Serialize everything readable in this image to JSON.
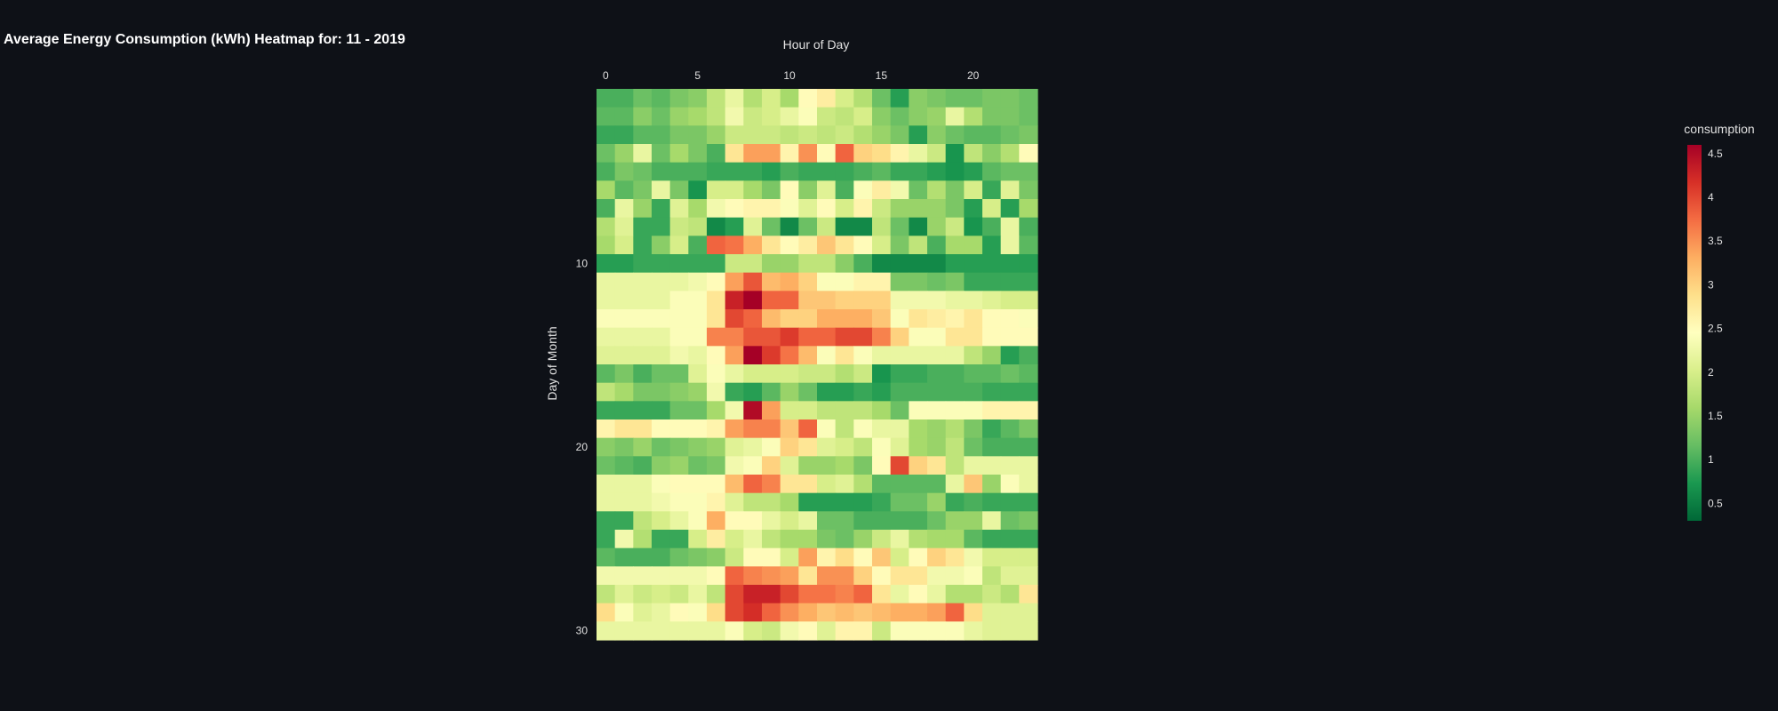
{
  "colors": {
    "background": "#0e1117",
    "text": "#e6e6e6"
  },
  "chart_data": {
    "type": "heatmap",
    "title": "Average Energy Consumption (kWh) Heatmap for: 11 - 2019",
    "xlabel": "Hour of Day",
    "ylabel": "Day of Month",
    "x": [
      0,
      1,
      2,
      3,
      4,
      5,
      6,
      7,
      8,
      9,
      10,
      11,
      12,
      13,
      14,
      15,
      16,
      17,
      18,
      19,
      20,
      21,
      22,
      23
    ],
    "y": [
      1,
      2,
      3,
      4,
      5,
      6,
      7,
      8,
      9,
      10,
      11,
      12,
      13,
      14,
      15,
      16,
      17,
      18,
      19,
      20,
      21,
      22,
      23,
      24,
      25,
      26,
      27,
      28,
      29,
      30
    ],
    "x_ticks": [
      0,
      5,
      10,
      15,
      20
    ],
    "y_ticks": [
      10,
      20,
      30
    ],
    "x_axis_position": "top",
    "y_axis_reversed": true,
    "colorscale": "RdYlGn (reversed)",
    "zmin": 0.3,
    "zmax": 4.6,
    "colorbar": {
      "title": "consumption",
      "tickvals": [
        0.5,
        1,
        1.5,
        2,
        2.5,
        3,
        3.5,
        4,
        4.5
      ],
      "ticktext": [
        "0.5",
        "1",
        "1.5",
        "2",
        "2.5",
        "3",
        "3.5",
        "4",
        "4.5"
      ]
    },
    "z": [
      [
        1.0,
        1.0,
        1.2,
        1.1,
        1.3,
        1.4,
        1.8,
        2.2,
        1.7,
        2.0,
        1.6,
        2.5,
        2.7,
        2.0,
        1.7,
        1.2,
        0.8,
        1.4,
        1.3,
        1.2,
        1.2,
        1.3,
        1.3,
        1.2
      ],
      [
        1.1,
        1.1,
        1.4,
        1.2,
        1.5,
        1.6,
        1.8,
        2.3,
        1.9,
        2.0,
        2.2,
        2.4,
        1.9,
        1.8,
        2.0,
        1.4,
        1.2,
        1.4,
        1.5,
        2.2,
        1.7,
        1.3,
        1.3,
        1.2
      ],
      [
        0.9,
        0.9,
        1.1,
        1.1,
        1.3,
        1.3,
        1.5,
        1.9,
        1.9,
        1.9,
        1.8,
        1.9,
        1.8,
        1.9,
        1.7,
        1.5,
        1.3,
        0.8,
        1.4,
        1.2,
        1.1,
        1.1,
        1.2,
        1.3
      ],
      [
        1.2,
        1.5,
        2.2,
        1.2,
        1.6,
        1.3,
        1.0,
        2.8,
        3.4,
        3.4,
        2.6,
        3.5,
        2.5,
        3.8,
        3.0,
        2.9,
        2.6,
        2.2,
        1.9,
        0.7,
        1.8,
        1.4,
        1.7,
        2.5
      ],
      [
        1.0,
        1.3,
        1.2,
        1.0,
        1.0,
        1.0,
        0.9,
        0.9,
        0.9,
        0.8,
        1.0,
        0.9,
        0.9,
        0.9,
        1.0,
        1.1,
        0.9,
        0.9,
        0.8,
        0.7,
        0.8,
        1.1,
        1.2,
        1.2
      ],
      [
        1.6,
        1.1,
        1.3,
        2.2,
        1.3,
        0.7,
        2.0,
        2.0,
        1.6,
        1.3,
        2.5,
        1.4,
        2.1,
        1.0,
        2.4,
        2.7,
        2.3,
        1.2,
        1.7,
        1.3,
        2.0,
        0.9,
        2.1,
        1.3
      ],
      [
        1.0,
        2.2,
        1.5,
        0.9,
        2.1,
        1.6,
        2.3,
        2.5,
        2.6,
        2.6,
        2.4,
        2.1,
        2.5,
        2.0,
        2.6,
        1.9,
        1.5,
        1.5,
        1.5,
        1.3,
        0.8,
        2.0,
        0.8,
        1.6
      ],
      [
        1.7,
        2.1,
        0.9,
        0.9,
        1.9,
        1.8,
        0.6,
        0.8,
        2.1,
        1.2,
        0.6,
        1.2,
        1.9,
        0.6,
        0.6,
        1.8,
        1.2,
        0.6,
        1.5,
        1.9,
        0.7,
        1.0,
        2.2,
        1.0
      ],
      [
        1.6,
        2.0,
        0.9,
        1.4,
        2.0,
        1.0,
        3.8,
        3.7,
        3.3,
        2.8,
        2.5,
        2.7,
        3.1,
        2.8,
        2.5,
        2.0,
        1.3,
        1.8,
        1.0,
        1.6,
        1.6,
        0.8,
        2.2,
        1.1
      ],
      [
        0.8,
        0.8,
        0.9,
        0.9,
        0.9,
        0.9,
        0.9,
        1.9,
        1.9,
        1.5,
        1.5,
        1.8,
        1.8,
        1.4,
        1.0,
        0.6,
        0.6,
        0.6,
        0.6,
        0.8,
        0.8,
        0.8,
        0.8,
        0.8
      ],
      [
        2.2,
        2.2,
        2.2,
        2.2,
        2.2,
        2.3,
        2.5,
        3.4,
        3.9,
        3.2,
        3.3,
        3.0,
        2.4,
        2.4,
        2.6,
        2.6,
        1.3,
        1.3,
        1.2,
        1.3,
        0.9,
        0.9,
        0.9,
        0.9
      ],
      [
        2.2,
        2.2,
        2.2,
        2.2,
        2.4,
        2.4,
        2.8,
        4.3,
        4.6,
        3.8,
        3.8,
        3.1,
        3.1,
        3.0,
        3.0,
        3.0,
        2.3,
        2.3,
        2.3,
        2.2,
        2.2,
        2.1,
        2.0,
        2.0
      ],
      [
        2.4,
        2.4,
        2.4,
        2.4,
        2.4,
        2.4,
        2.8,
        4.0,
        3.8,
        3.2,
        3.0,
        3.0,
        3.3,
        3.3,
        3.3,
        3.1,
        2.4,
        2.8,
        2.7,
        2.6,
        2.8,
        2.5,
        2.5,
        2.4
      ],
      [
        2.2,
        2.2,
        2.2,
        2.2,
        2.4,
        2.4,
        3.6,
        3.6,
        3.9,
        3.9,
        4.1,
        3.8,
        3.8,
        4.0,
        4.0,
        3.6,
        3.0,
        2.4,
        2.4,
        2.8,
        2.8,
        2.5,
        2.5,
        2.5
      ],
      [
        2.1,
        2.1,
        2.1,
        2.1,
        2.3,
        2.2,
        2.5,
        3.4,
        4.6,
        4.1,
        3.7,
        3.2,
        2.4,
        2.8,
        2.4,
        2.2,
        2.2,
        2.2,
        2.2,
        2.2,
        1.8,
        1.5,
        0.8,
        1.0
      ],
      [
        1.1,
        1.3,
        1.0,
        1.2,
        1.2,
        2.1,
        2.4,
        2.2,
        2.0,
        2.0,
        2.0,
        1.9,
        1.9,
        1.7,
        1.9,
        0.7,
        0.9,
        0.9,
        1.0,
        1.0,
        1.1,
        1.1,
        1.2,
        1.1
      ],
      [
        1.8,
        1.6,
        1.3,
        1.3,
        1.4,
        1.5,
        2.3,
        0.9,
        0.8,
        1.1,
        1.5,
        1.2,
        0.8,
        0.8,
        0.9,
        0.8,
        1.0,
        1.0,
        1.0,
        1.0,
        1.0,
        0.9,
        0.9,
        0.9
      ],
      [
        0.9,
        0.9,
        0.9,
        0.9,
        1.2,
        1.2,
        1.6,
        2.3,
        4.5,
        3.4,
        2.0,
        2.0,
        1.8,
        1.8,
        1.8,
        1.6,
        1.2,
        2.4,
        2.4,
        2.4,
        2.4,
        2.6,
        2.6,
        2.6
      ],
      [
        2.6,
        2.8,
        2.8,
        2.5,
        2.5,
        2.5,
        2.6,
        3.4,
        3.6,
        3.6,
        3.1,
        3.8,
        2.4,
        1.8,
        2.4,
        2.2,
        2.2,
        1.6,
        1.5,
        1.7,
        1.3,
        0.9,
        1.1,
        1.3
      ],
      [
        1.4,
        1.3,
        1.5,
        1.2,
        1.3,
        1.4,
        1.5,
        2.1,
        2.2,
        2.4,
        3.0,
        2.8,
        2.1,
        2.0,
        1.8,
        2.4,
        2.1,
        1.6,
        1.5,
        1.8,
        1.2,
        1.0,
        1.0,
        1.0
      ],
      [
        1.2,
        1.1,
        1.0,
        1.4,
        1.5,
        1.2,
        1.3,
        2.3,
        2.4,
        3.0,
        2.1,
        1.5,
        1.5,
        1.6,
        1.3,
        2.5,
        4.0,
        3.0,
        2.8,
        1.8,
        2.2,
        2.2,
        2.2,
        2.2
      ],
      [
        2.2,
        2.2,
        2.2,
        2.4,
        2.5,
        2.5,
        2.5,
        3.2,
        3.8,
        3.6,
        2.8,
        2.8,
        2.0,
        2.1,
        1.7,
        1.1,
        1.1,
        1.1,
        1.1,
        2.2,
        3.1,
        1.5,
        2.4,
        2.2
      ],
      [
        2.2,
        2.2,
        2.2,
        2.3,
        2.4,
        2.4,
        2.6,
        2.1,
        1.8,
        1.8,
        1.6,
        0.8,
        0.8,
        0.8,
        0.8,
        0.9,
        1.2,
        1.2,
        1.5,
        0.9,
        1.0,
        0.9,
        0.9,
        0.9
      ],
      [
        0.9,
        0.9,
        1.8,
        2.0,
        2.2,
        2.4,
        3.3,
        2.5,
        2.5,
        2.2,
        2.0,
        2.2,
        1.2,
        1.2,
        1.0,
        1.0,
        1.0,
        1.0,
        1.2,
        1.5,
        1.5,
        2.2,
        1.2,
        1.3
      ],
      [
        0.9,
        2.3,
        1.7,
        0.9,
        0.9,
        2.0,
        2.7,
        2.0,
        2.2,
        1.8,
        1.6,
        1.6,
        1.3,
        1.2,
        1.5,
        1.9,
        2.2,
        1.7,
        1.6,
        1.6,
        1.1,
        0.9,
        0.9,
        0.9
      ],
      [
        1.1,
        1.0,
        1.0,
        1.0,
        1.2,
        1.3,
        1.4,
        1.9,
        2.5,
        2.5,
        2.0,
        3.4,
        2.6,
        2.9,
        2.5,
        3.1,
        2.0,
        2.5,
        3.0,
        2.8,
        2.3,
        2.0,
        2.0,
        2.0
      ],
      [
        2.3,
        2.3,
        2.3,
        2.3,
        2.3,
        2.3,
        2.5,
        3.8,
        3.6,
        3.5,
        3.4,
        2.8,
        3.5,
        3.5,
        3.0,
        2.5,
        2.8,
        2.8,
        2.3,
        2.3,
        2.4,
        1.8,
        2.1,
        2.1
      ],
      [
        1.8,
        2.1,
        1.9,
        2.0,
        1.9,
        2.2,
        1.8,
        4.0,
        4.3,
        4.3,
        4.0,
        3.7,
        3.7,
        3.6,
        3.8,
        2.8,
        2.2,
        2.5,
        2.2,
        1.7,
        1.7,
        1.9,
        1.7,
        2.8
      ],
      [
        2.9,
        2.4,
        2.1,
        2.2,
        2.5,
        2.4,
        2.9,
        4.0,
        4.2,
        3.8,
        3.5,
        3.3,
        3.1,
        3.2,
        3.1,
        3.2,
        3.3,
        3.3,
        3.4,
        3.8,
        2.9,
        2.1,
        2.1,
        2.1
      ],
      [
        2.2,
        2.2,
        2.2,
        2.2,
        2.2,
        2.2,
        2.2,
        2.4,
        2.0,
        1.9,
        2.3,
        2.5,
        2.1,
        2.6,
        2.6,
        1.9,
        2.4,
        2.4,
        2.4,
        2.4,
        2.2,
        2.1,
        2.1,
        2.1
      ]
    ]
  }
}
